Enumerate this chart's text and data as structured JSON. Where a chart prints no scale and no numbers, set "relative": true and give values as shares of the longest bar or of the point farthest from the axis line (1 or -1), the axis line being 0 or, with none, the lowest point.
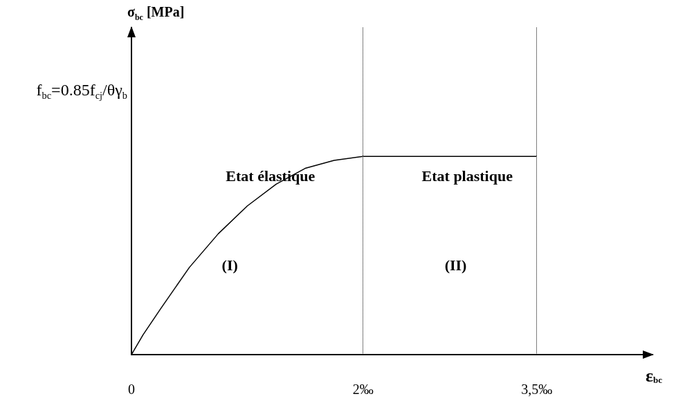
{
  "chart_data": {
    "type": "line",
    "relative": true,
    "xlabel": "ε$_{bc}$",
    "x": [
      0,
      0.1,
      0.25,
      0.5,
      0.75,
      1,
      1.25,
      1.5,
      1.75,
      2,
      3.5
    ],
    "series": [
      {
        "color": "#000000",
        "values": [
          0,
          0.1,
          0.23,
          0.44,
          0.61,
          0.75,
          0.86,
          0.94,
          0.98,
          1,
          1
        ]
      }
    ],
    "xlim": [
      0,
      4.5
    ],
    "xticks": [
      0,
      {
        "value": 2,
        "label": "2‰"
      },
      {
        "value": 3.5,
        "label": "3,5‰"
      }
    ],
    "marker": "none",
    "line_style": "solid",
    "grid": false,
    "ref_lines": [
      {
        "axis": "x",
        "value": 2,
        "line_style": "dotted",
        "color": "#000000"
      },
      {
        "axis": "x",
        "value": 3.5,
        "line_style": "dotted",
        "color": "#000000"
      }
    ],
    "annotations": [
      "f$_{bc}$=0.85f$_{cj}$/θγ$_{b}$",
      "Etat élastique",
      "Etat plastique",
      "(I)",
      "(II)",
      "σ$_{bc}$ [MPa]"
    ]
  }
}
